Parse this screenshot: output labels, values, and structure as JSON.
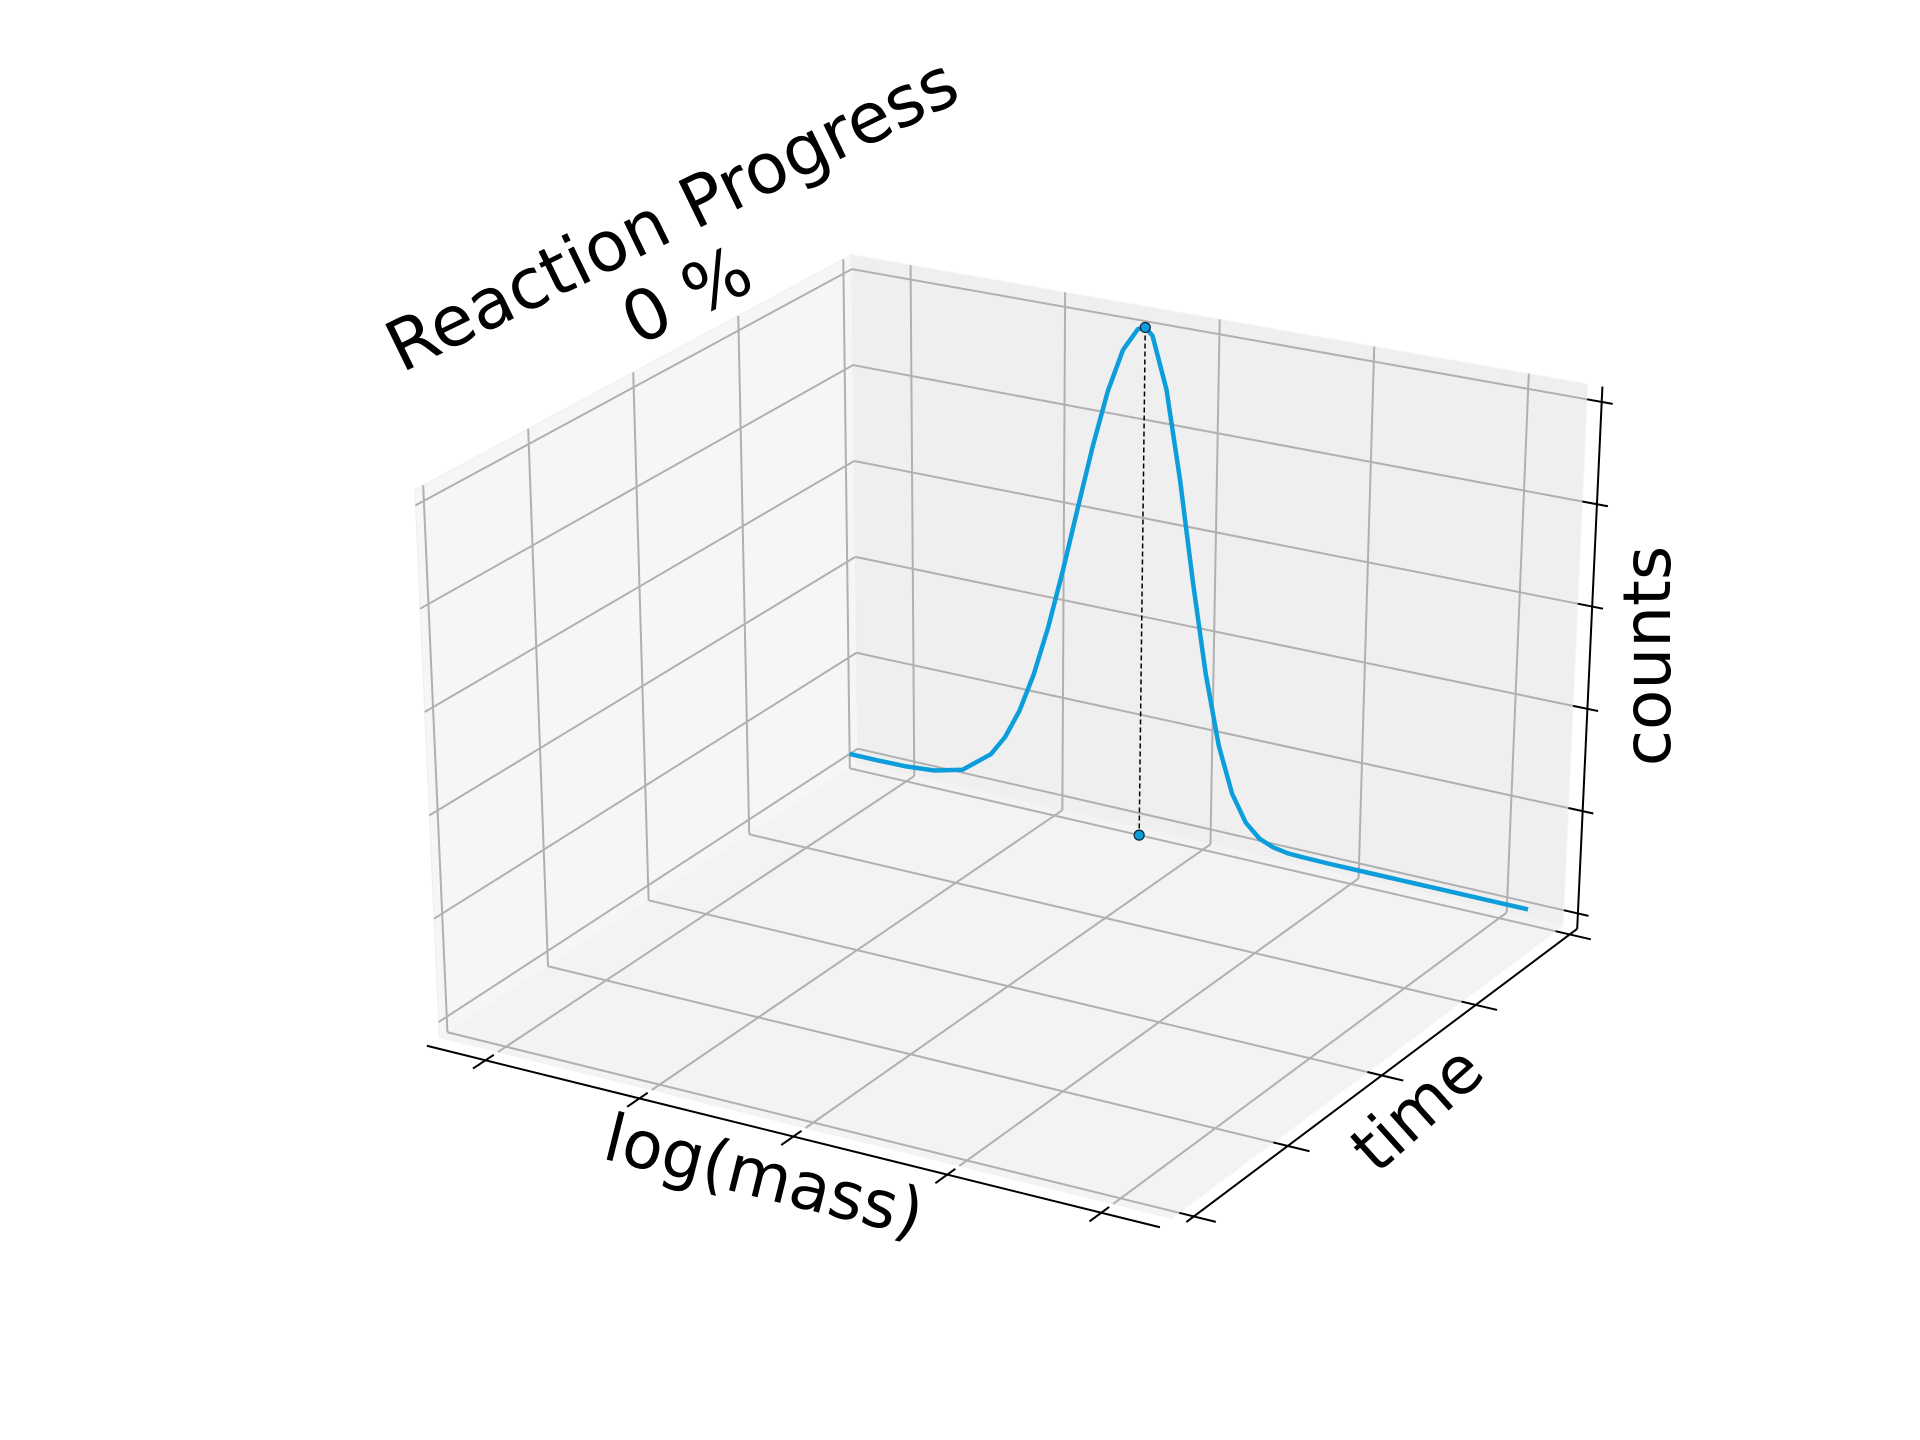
{
  "chart_data": {
    "type": "line3d",
    "title": "Reaction Progress",
    "subtitle": "0 %",
    "xlabel": "log(mass)",
    "ylabel": "time",
    "zlabel": "counts",
    "x": [
      0,
      0.04,
      0.08,
      0.12,
      0.16,
      0.2,
      0.22,
      0.24,
      0.26,
      0.28,
      0.3,
      0.32,
      0.34,
      0.36,
      0.38,
      0.4,
      0.41,
      0.42,
      0.44,
      0.46,
      0.48,
      0.5,
      0.52,
      0.54,
      0.56,
      0.58,
      0.6,
      0.62,
      0.64,
      0.68,
      0.72,
      0.76,
      0.8,
      0.84,
      0.88,
      0.92,
      0.96
    ],
    "z": [
      0,
      0,
      0.001,
      0.006,
      0.021,
      0.066,
      0.108,
      0.168,
      0.249,
      0.352,
      0.474,
      0.607,
      0.739,
      0.857,
      0.946,
      0.994,
      1,
      0.986,
      0.882,
      0.707,
      0.506,
      0.325,
      0.186,
      0.096,
      0.044,
      0.018,
      0.007,
      0.002,
      0.001,
      0,
      0,
      0,
      0,
      0,
      0,
      0,
      0
    ],
    "y": 1,
    "color": "#0d9ddb",
    "peak": {
      "x": 0.41,
      "z": 1
    },
    "xlim": [
      0,
      1
    ],
    "xticks": [
      0.08,
      0.29,
      0.5,
      0.71,
      0.92
    ],
    "ylim": [
      -0.02,
      1.02
    ],
    "yticks": [
      0,
      0.25,
      0.5,
      0.75,
      1
    ],
    "zlim": [
      -0.03,
      1.03
    ],
    "zticks": [
      0,
      0.2,
      0.4,
      0.6,
      0.8,
      1
    ],
    "grid": true
  }
}
